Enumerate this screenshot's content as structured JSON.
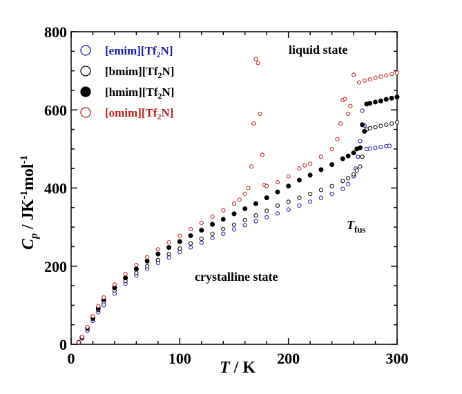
{
  "chart_data": {
    "type": "scatter",
    "xlim": [
      0,
      300
    ],
    "ylim": [
      0,
      800
    ],
    "xticks": [
      "0",
      "100",
      "200",
      "300"
    ],
    "yticks": [
      "0",
      "200",
      "400",
      "600",
      "800"
    ],
    "xlabel": {
      "main": "T",
      "rest": " / K"
    },
    "ylabel": {
      "main": "C",
      "sub": "p",
      "rest1": " / JK",
      "sup1": "-1",
      "rest2": "mol",
      "sup2": "-1"
    },
    "legend_position": "top-left",
    "annotations": {
      "liquid": "liquid state",
      "crystalline": "crystalline state",
      "tfus_main": "T",
      "tfus_sub": "fus"
    },
    "series": [
      {
        "name": "[emim][Tf2N]",
        "legend": {
          "pre": "[emim][Tf",
          "sub": "2",
          "post": "N]"
        },
        "color": "#1a1aa6",
        "filled": false,
        "x": [
          7,
          10,
          15,
          20,
          25,
          30,
          40,
          50,
          60,
          70,
          80,
          90,
          100,
          110,
          120,
          130,
          140,
          150,
          160,
          170,
          180,
          190,
          200,
          210,
          220,
          230,
          240,
          250,
          255,
          260,
          262,
          264,
          266,
          268,
          270,
          272,
          275,
          280,
          285,
          290,
          293
        ],
        "y": [
          5,
          15,
          35,
          60,
          82,
          100,
          130,
          155,
          176,
          193,
          208,
          222,
          236,
          248,
          260,
          272,
          283,
          294,
          305,
          315,
          325,
          335,
          345,
          355,
          365,
          375,
          385,
          398,
          410,
          430,
          450,
          480,
          520,
          598,
          560,
          500,
          501,
          503,
          505,
          507,
          508
        ]
      },
      {
        "name": "[bmim][Tf2N]",
        "legend": {
          "pre": "[bmim][Tf",
          "sub": "2",
          "post": "N]"
        },
        "color": "#000000",
        "filled": false,
        "x": [
          7,
          10,
          15,
          20,
          25,
          30,
          40,
          50,
          60,
          70,
          80,
          90,
          100,
          110,
          120,
          130,
          140,
          150,
          160,
          170,
          180,
          190,
          200,
          210,
          220,
          230,
          240,
          250,
          255,
          260,
          263,
          266,
          268,
          270,
          272,
          275,
          280,
          285,
          290,
          295,
          300
        ],
        "y": [
          5,
          18,
          40,
          65,
          88,
          108,
          138,
          162,
          183,
          200,
          216,
          231,
          245,
          258,
          270,
          283,
          295,
          306,
          318,
          330,
          342,
          355,
          365,
          375,
          385,
          395,
          405,
          418,
          425,
          435,
          445,
          455,
          480,
          545,
          550,
          553,
          556,
          559,
          562,
          565,
          568
        ]
      },
      {
        "name": "[hmim][Tf2N]",
        "legend": {
          "pre": "[hmim][Tf",
          "sub": "2",
          "post": "N]"
        },
        "color": "#000000",
        "filled": true,
        "x": [
          7,
          10,
          15,
          20,
          25,
          30,
          40,
          50,
          60,
          70,
          80,
          90,
          100,
          110,
          120,
          130,
          140,
          150,
          160,
          170,
          180,
          190,
          200,
          210,
          220,
          230,
          240,
          250,
          255,
          260,
          263,
          266,
          268,
          270,
          272,
          275,
          280,
          285,
          290,
          295,
          300
        ],
        "y": [
          5,
          18,
          42,
          68,
          92,
          114,
          145,
          170,
          193,
          213,
          231,
          248,
          263,
          278,
          292,
          307,
          320,
          334,
          347,
          360,
          375,
          390,
          405,
          420,
          433,
          447,
          460,
          475,
          482,
          490,
          500,
          503,
          562,
          545,
          615,
          617,
          620,
          623,
          627,
          630,
          633
        ]
      },
      {
        "name": "[omim][Tf2N]",
        "legend": {
          "pre": "[omim][Tf",
          "sub": "2",
          "post": "N]"
        },
        "color": "#c02020",
        "filled": false,
        "x": [
          7,
          10,
          15,
          20,
          25,
          30,
          40,
          50,
          60,
          70,
          80,
          90,
          100,
          110,
          120,
          130,
          140,
          150,
          155,
          160,
          163,
          166,
          168,
          170,
          172,
          174,
          176,
          178,
          180,
          190,
          200,
          210,
          215,
          220,
          230,
          240,
          245,
          248,
          250,
          252,
          255,
          257,
          260,
          265,
          270,
          275,
          280,
          285,
          290,
          295,
          300
        ],
        "y": [
          5,
          19,
          44,
          72,
          98,
          120,
          153,
          180,
          203,
          223,
          243,
          261,
          278,
          295,
          311,
          327,
          343,
          360,
          370,
          385,
          400,
          455,
          565,
          730,
          720,
          590,
          485,
          408,
          405,
          415,
          430,
          450,
          458,
          462,
          480,
          500,
          525,
          565,
          625,
          628,
          590,
          610,
          690,
          670,
          675,
          678,
          682,
          685,
          688,
          692,
          695
        ]
      }
    ]
  }
}
